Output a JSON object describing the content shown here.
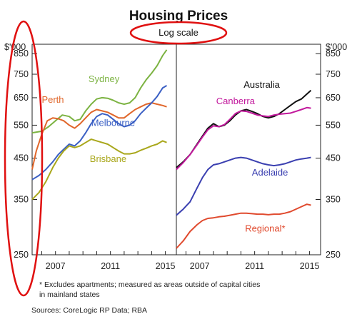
{
  "chart_data": {
    "type": "line",
    "title": "Housing Prices",
    "subtitle": "Log scale",
    "y_unit": "$'000",
    "y_scale": "log",
    "ylim": [
      250,
      900
    ],
    "yticks": [
      250,
      350,
      450,
      550,
      650,
      750,
      850
    ],
    "xticks": [
      2007,
      2011,
      2015
    ],
    "xlim": [
      2005.3,
      2015.8
    ],
    "grid": false,
    "legend": "inline labels",
    "panels": [
      {
        "id": "left",
        "series": [
          {
            "name": "Sydney",
            "color": "#7cb342",
            "points": [
              [
                2005.3,
                525
              ],
              [
                2006,
                530
              ],
              [
                2006.5,
                545
              ],
              [
                2007,
                565
              ],
              [
                2007.5,
                585
              ],
              [
                2008,
                580
              ],
              [
                2008.4,
                565
              ],
              [
                2008.8,
                570
              ],
              [
                2009.2,
                600
              ],
              [
                2009.6,
                625
              ],
              [
                2010,
                645
              ],
              [
                2010.4,
                650
              ],
              [
                2010.8,
                648
              ],
              [
                2011.2,
                640
              ],
              [
                2011.6,
                630
              ],
              [
                2012,
                625
              ],
              [
                2012.4,
                630
              ],
              [
                2012.8,
                650
              ],
              [
                2013.2,
                690
              ],
              [
                2013.6,
                725
              ],
              [
                2014,
                755
              ],
              [
                2014.4,
                790
              ],
              [
                2014.8,
                840
              ],
              [
                2015.1,
                870
              ]
            ]
          },
          {
            "name": "Perth",
            "color": "#e0662a",
            "points": [
              [
                2005.3,
                420
              ],
              [
                2005.6,
                470
              ],
              [
                2006,
                520
              ],
              [
                2006.4,
                565
              ],
              [
                2006.8,
                575
              ],
              [
                2007.2,
                572
              ],
              [
                2007.6,
                565
              ],
              [
                2008,
                550
              ],
              [
                2008.4,
                540
              ],
              [
                2008.8,
                555
              ],
              [
                2009.2,
                575
              ],
              [
                2009.6,
                595
              ],
              [
                2010,
                605
              ],
              [
                2010.4,
                600
              ],
              [
                2010.8,
                595
              ],
              [
                2011.2,
                585
              ],
              [
                2011.6,
                575
              ],
              [
                2012,
                575
              ],
              [
                2012.4,
                590
              ],
              [
                2012.8,
                605
              ],
              [
                2013.2,
                615
              ],
              [
                2013.6,
                625
              ],
              [
                2014,
                630
              ],
              [
                2014.4,
                625
              ],
              [
                2014.8,
                620
              ],
              [
                2015.1,
                615
              ]
            ]
          },
          {
            "name": "Melbourne",
            "color": "#3a5fc4",
            "points": [
              [
                2005.3,
                395
              ],
              [
                2005.8,
                405
              ],
              [
                2006.3,
                420
              ],
              [
                2006.8,
                440
              ],
              [
                2007.2,
                460
              ],
              [
                2007.6,
                475
              ],
              [
                2008,
                490
              ],
              [
                2008.4,
                485
              ],
              [
                2008.8,
                500
              ],
              [
                2009.2,
                525
              ],
              [
                2009.6,
                555
              ],
              [
                2010,
                580
              ],
              [
                2010.4,
                590
              ],
              [
                2010.8,
                585
              ],
              [
                2011.2,
                570
              ],
              [
                2011.6,
                555
              ],
              [
                2012,
                545
              ],
              [
                2012.4,
                550
              ],
              [
                2012.8,
                565
              ],
              [
                2013.2,
                590
              ],
              [
                2013.6,
                610
              ],
              [
                2014,
                630
              ],
              [
                2014.4,
                655
              ],
              [
                2014.8,
                690
              ],
              [
                2015.1,
                700
              ]
            ]
          },
          {
            "name": "Brisbane",
            "color": "#a9a71b",
            "points": [
              [
                2005.3,
                350
              ],
              [
                2005.8,
                365
              ],
              [
                2006.3,
                390
              ],
              [
                2006.8,
                425
              ],
              [
                2007.2,
                450
              ],
              [
                2007.6,
                470
              ],
              [
                2008,
                485
              ],
              [
                2008.4,
                480
              ],
              [
                2008.8,
                485
              ],
              [
                2009.2,
                495
              ],
              [
                2009.6,
                505
              ],
              [
                2010,
                500
              ],
              [
                2010.4,
                495
              ],
              [
                2010.8,
                490
              ],
              [
                2011.2,
                480
              ],
              [
                2011.6,
                470
              ],
              [
                2012,
                462
              ],
              [
                2012.4,
                462
              ],
              [
                2012.8,
                465
              ],
              [
                2013.2,
                472
              ],
              [
                2013.6,
                478
              ],
              [
                2014,
                485
              ],
              [
                2014.4,
                490
              ],
              [
                2014.8,
                500
              ],
              [
                2015.1,
                495
              ]
            ]
          }
        ]
      },
      {
        "id": "right",
        "series": [
          {
            "name": "Australia",
            "color": "#111111",
            "points": [
              [
                2005.3,
                425
              ],
              [
                2005.8,
                440
              ],
              [
                2006.3,
                460
              ],
              [
                2006.8,
                490
              ],
              [
                2007.2,
                515
              ],
              [
                2007.6,
                540
              ],
              [
                2008,
                555
              ],
              [
                2008.4,
                545
              ],
              [
                2008.8,
                550
              ],
              [
                2009.2,
                565
              ],
              [
                2009.6,
                585
              ],
              [
                2010,
                600
              ],
              [
                2010.4,
                605
              ],
              [
                2010.8,
                598
              ],
              [
                2011.2,
                590
              ],
              [
                2011.6,
                580
              ],
              [
                2012,
                575
              ],
              [
                2012.4,
                580
              ],
              [
                2012.8,
                590
              ],
              [
                2013.2,
                605
              ],
              [
                2013.6,
                620
              ],
              [
                2014,
                635
              ],
              [
                2014.4,
                645
              ],
              [
                2014.8,
                665
              ],
              [
                2015.1,
                680
              ]
            ]
          },
          {
            "name": "Canberra",
            "color": "#c2189c",
            "points": [
              [
                2005.3,
                420
              ],
              [
                2005.8,
                438
              ],
              [
                2006.3,
                460
              ],
              [
                2006.8,
                488
              ],
              [
                2007.2,
                512
              ],
              [
                2007.6,
                535
              ],
              [
                2008,
                548
              ],
              [
                2008.4,
                545
              ],
              [
                2008.8,
                552
              ],
              [
                2009.2,
                570
              ],
              [
                2009.6,
                590
              ],
              [
                2010,
                600
              ],
              [
                2010.4,
                598
              ],
              [
                2010.8,
                592
              ],
              [
                2011.2,
                585
              ],
              [
                2011.6,
                582
              ],
              [
                2012,
                580
              ],
              [
                2012.4,
                585
              ],
              [
                2012.8,
                588
              ],
              [
                2013.2,
                590
              ],
              [
                2013.6,
                592
              ],
              [
                2014,
                598
              ],
              [
                2014.4,
                605
              ],
              [
                2014.8,
                612
              ],
              [
                2015.1,
                610
              ]
            ]
          },
          {
            "name": "Adelaide",
            "color": "#3a3fb0",
            "points": [
              [
                2005.3,
                318
              ],
              [
                2005.8,
                330
              ],
              [
                2006.3,
                345
              ],
              [
                2006.8,
                375
              ],
              [
                2007.2,
                400
              ],
              [
                2007.6,
                420
              ],
              [
                2008,
                432
              ],
              [
                2008.4,
                435
              ],
              [
                2008.8,
                440
              ],
              [
                2009.2,
                445
              ],
              [
                2009.6,
                450
              ],
              [
                2010,
                452
              ],
              [
                2010.4,
                450
              ],
              [
                2010.8,
                445
              ],
              [
                2011.2,
                440
              ],
              [
                2011.6,
                435
              ],
              [
                2012,
                432
              ],
              [
                2012.4,
                430
              ],
              [
                2012.8,
                432
              ],
              [
                2013.2,
                435
              ],
              [
                2013.6,
                440
              ],
              [
                2014,
                445
              ],
              [
                2014.4,
                448
              ],
              [
                2014.8,
                450
              ],
              [
                2015.1,
                452
              ]
            ]
          },
          {
            "name": "Regional*",
            "color": "#e04a2e",
            "points": [
              [
                2005.3,
                260
              ],
              [
                2005.8,
                272
              ],
              [
                2006.3,
                288
              ],
              [
                2006.8,
                300
              ],
              [
                2007.2,
                308
              ],
              [
                2007.6,
                312
              ],
              [
                2008,
                313
              ],
              [
                2008.4,
                315
              ],
              [
                2008.8,
                316
              ],
              [
                2009.2,
                318
              ],
              [
                2009.6,
                320
              ],
              [
                2010,
                322
              ],
              [
                2010.4,
                322
              ],
              [
                2010.8,
                321
              ],
              [
                2011.2,
                320
              ],
              [
                2011.6,
                320
              ],
              [
                2012,
                319
              ],
              [
                2012.4,
                320
              ],
              [
                2012.8,
                320
              ],
              [
                2013.2,
                322
              ],
              [
                2013.6,
                325
              ],
              [
                2014,
                330
              ],
              [
                2014.4,
                335
              ],
              [
                2014.8,
                340
              ],
              [
                2015.1,
                338
              ]
            ]
          }
        ]
      }
    ],
    "footnote": "*   Excludes apartments; measured as areas outside of capital cities\n    in mainland states",
    "sources": "Sources:   CoreLogic RP Data; RBA"
  },
  "annotations": {
    "ellipse_color": "#e01010"
  }
}
